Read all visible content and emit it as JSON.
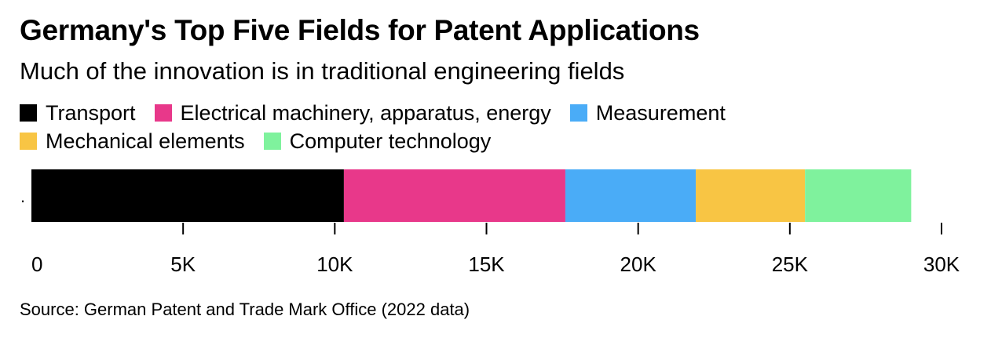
{
  "chart_data": {
    "type": "bar",
    "orientation": "horizontal",
    "stacked": true,
    "title": "Germany's Top Five Fields for Patent Applications",
    "subtitle": "Much of the innovation is in traditional engineering fields",
    "categories": [
      "."
    ],
    "series": [
      {
        "name": "Transport",
        "values": [
          10300
        ],
        "color": "#000000"
      },
      {
        "name": "Electrical machinery, apparatus, energy",
        "values": [
          7300
        ],
        "color": "#e8388a"
      },
      {
        "name": "Measurement",
        "values": [
          4300
        ],
        "color": "#4aacf7"
      },
      {
        "name": "Mechanical elements",
        "values": [
          3600
        ],
        "color": "#f8c544"
      },
      {
        "name": "Computer technology",
        "values": [
          3500
        ],
        "color": "#7ff29d"
      }
    ],
    "xlim": [
      0,
      30000
    ],
    "xticks": [
      0,
      5000,
      10000,
      15000,
      20000,
      25000,
      30000
    ],
    "xtick_labels": [
      "0",
      "5K",
      "10K",
      "15K",
      "20K",
      "25K",
      "30K"
    ],
    "xlabel": "",
    "ylabel": "",
    "legend_position": "top-left",
    "grid": false,
    "source": "Source: German Patent and Trade Mark Office (2022 data)"
  }
}
